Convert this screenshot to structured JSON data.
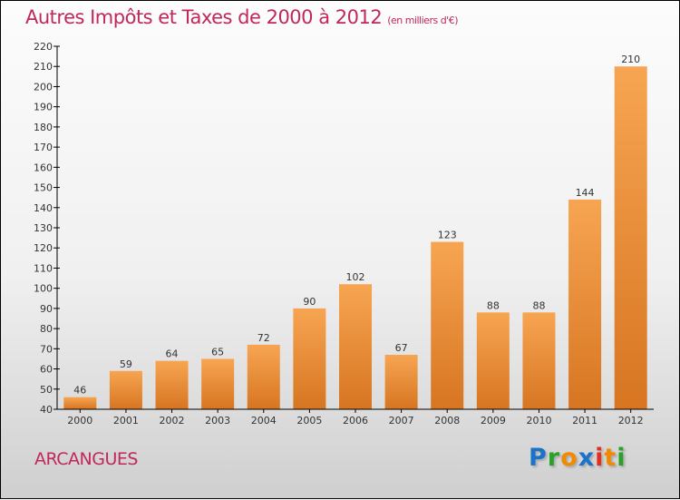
{
  "title": "Autres Impôts et Taxes de 2000 à 2012",
  "subtitle": "(en milliers d'€)",
  "town": "ARCANGUES",
  "logo": {
    "letters": [
      "P",
      "r",
      "o",
      "x",
      "i",
      "t",
      "i"
    ],
    "colors": [
      "#1a73c8",
      "#2aa12a",
      "#f08a00",
      "#1a73c8",
      "#e03020",
      "#f08a00",
      "#2aa12a"
    ]
  },
  "colors": {
    "bar_top": "#f7a552",
    "bar_bottom": "#d77521",
    "text": "#c0285a"
  },
  "chart_data": {
    "type": "bar",
    "title": "Autres Impôts et Taxes de 2000 à 2012",
    "ylabel": "en milliers d'€",
    "categories": [
      "2000",
      "2001",
      "2002",
      "2003",
      "2004",
      "2005",
      "2006",
      "2007",
      "2008",
      "2009",
      "2010",
      "2011",
      "2012"
    ],
    "values": [
      46,
      59,
      64,
      65,
      72,
      90,
      102,
      67,
      123,
      88,
      88,
      144,
      210
    ],
    "ylim": [
      40,
      220
    ],
    "yticks": [
      40,
      50,
      60,
      70,
      80,
      90,
      100,
      110,
      120,
      130,
      140,
      150,
      160,
      170,
      180,
      190,
      200,
      210,
      220
    ]
  }
}
